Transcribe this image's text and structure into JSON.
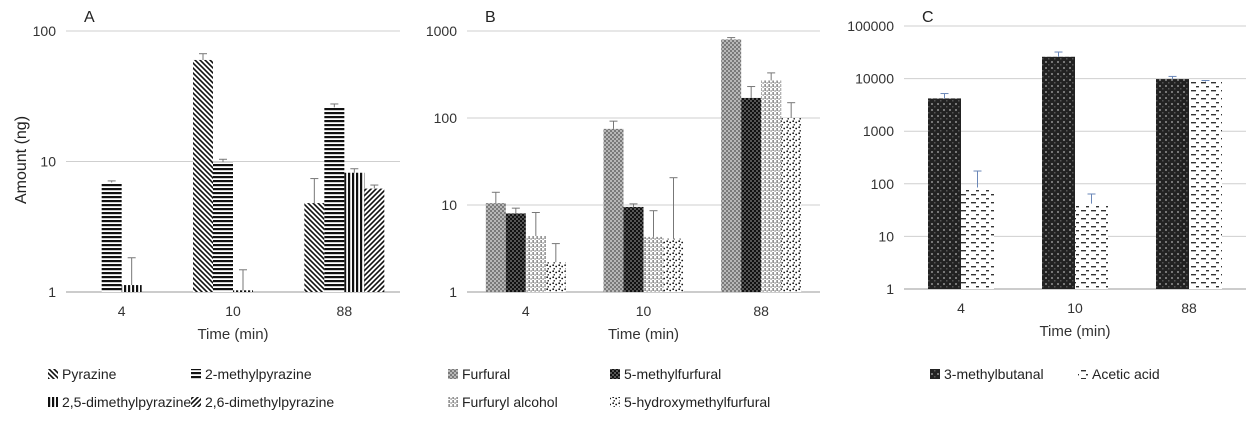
{
  "chart_data": [
    {
      "type": "bar",
      "panel": "A",
      "log_scale": true,
      "ylim": [
        1,
        100
      ],
      "ylabel": "Amount (ng)",
      "xlabel": "Time (min)",
      "categories": [
        "4",
        "10",
        "88"
      ],
      "tick_labels": [
        "1",
        "10",
        "100"
      ],
      "grid": true,
      "legend_position": "bottom",
      "series": [
        {
          "name": "Pyrazine",
          "pattern": "diag-down",
          "values": [
            null,
            60,
            4.8
          ],
          "errors": [
            null,
            7,
            2.6
          ]
        },
        {
          "name": "2-methylpyrazine",
          "pattern": "hlines",
          "values": [
            6.9,
            9.9,
            26
          ],
          "errors": [
            0.2,
            0.5,
            1.6
          ]
        },
        {
          "name": "2,5-dimethylpyrazine",
          "pattern": "vlines",
          "values": [
            1.13,
            1.03,
            8.2
          ],
          "errors": [
            0.7,
            0.45,
            0.6
          ]
        },
        {
          "name": "2,6-dimethylpyrazine",
          "pattern": "diag-up",
          "values": [
            null,
            null,
            6.2
          ],
          "errors": [
            null,
            null,
            0.4
          ]
        }
      ]
    },
    {
      "type": "bar",
      "panel": "B",
      "log_scale": true,
      "ylim": [
        1,
        1000
      ],
      "xlabel": "Time (min)",
      "categories": [
        "4",
        "10",
        "88"
      ],
      "tick_labels": [
        "1",
        "10",
        "100",
        "1000"
      ],
      "grid": true,
      "legend_position": "bottom",
      "series": [
        {
          "name": "Furfural",
          "pattern": "checker-gray",
          "values": [
            10.5,
            75,
            800
          ],
          "errors": [
            3.5,
            17,
            40
          ]
        },
        {
          "name": "5-methylfurfural",
          "pattern": "checker-dark",
          "values": [
            8,
            9.5,
            170
          ],
          "errors": [
            1.2,
            0.8,
            60
          ]
        },
        {
          "name": "Furfuryl alcohol",
          "pattern": "vdots",
          "values": [
            4.4,
            4.3,
            270
          ],
          "errors": [
            3.8,
            4.3,
            60
          ]
        },
        {
          "name": "5-hydroxymethylfurfural",
          "pattern": "speckle",
          "values": [
            2.2,
            4.1,
            100
          ],
          "errors": [
            1.4,
            16.5,
            50
          ]
        }
      ]
    },
    {
      "type": "bar",
      "panel": "C",
      "log_scale": true,
      "ylim": [
        1,
        100000
      ],
      "xlabel": "Time (min)",
      "categories": [
        "4",
        "10",
        "88"
      ],
      "tick_labels": [
        "1",
        "10",
        "100",
        "1000",
        "10000",
        "100000"
      ],
      "grid": true,
      "legend_position": "bottom",
      "series": [
        {
          "name": "3-methylbutanal",
          "pattern": "dark-grid",
          "values": [
            4200,
            26000,
            9800
          ],
          "errors": [
            1000,
            6000,
            1200
          ]
        },
        {
          "name": "Acetic acid",
          "pattern": "dashes",
          "values": [
            85,
            42,
            8800
          ],
          "errors": [
            90,
            22,
            400
          ]
        }
      ]
    }
  ]
}
